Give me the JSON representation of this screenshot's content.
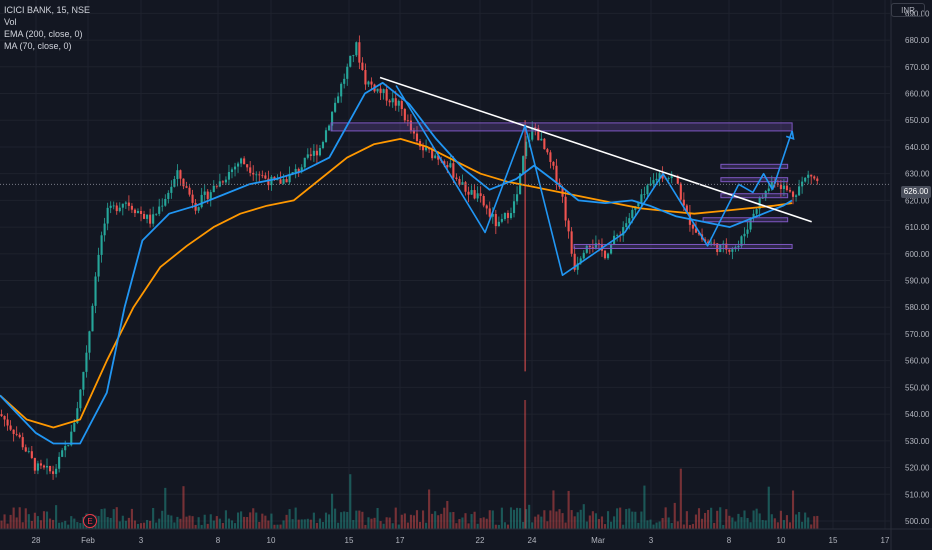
{
  "legend": {
    "symbol": "ICICI BANK, 15, NSE",
    "volume": "Vol",
    "ema": "EMA (200, close, 0)",
    "ma": "MA (70, close, 0)"
  },
  "currency": "INR",
  "last_price": "626.00",
  "event_marker": "E",
  "colors": {
    "background": "#131722",
    "grid": "#1e222d",
    "up": "#26a69a",
    "down": "#ef5350",
    "ema": "#ff9800",
    "ma": "#2196f3",
    "zone": "#7e57c2",
    "trendline": "#ffffff",
    "pattern": "#2196f3"
  },
  "chart_data": {
    "type": "candlestick",
    "symbol": "ICICI BANK",
    "timeframe": "15",
    "exchange": "NSE",
    "y_axis": {
      "range": [
        497,
        695
      ],
      "ticks": [
        500,
        510,
        520,
        530,
        540,
        550,
        560,
        570,
        580,
        590,
        600,
        610,
        620,
        630,
        640,
        650,
        660,
        670,
        680,
        690
      ]
    },
    "x_axis": {
      "ticks": [
        "28",
        "Feb",
        "3",
        "8",
        "10",
        "15",
        "17",
        "22",
        "24",
        "Mar",
        "3",
        "8",
        "10",
        "15",
        "17"
      ]
    },
    "price_path": [
      [
        0,
        540
      ],
      [
        0.02,
        532
      ],
      [
        0.04,
        520
      ],
      [
        0.06,
        518
      ],
      [
        0.08,
        532
      ],
      [
        0.09,
        548
      ],
      [
        0.1,
        570
      ],
      [
        0.11,
        600
      ],
      [
        0.12,
        615
      ],
      [
        0.14,
        620
      ],
      [
        0.17,
        612
      ],
      [
        0.2,
        630
      ],
      [
        0.22,
        618
      ],
      [
        0.25,
        628
      ],
      [
        0.27,
        635
      ],
      [
        0.29,
        630
      ],
      [
        0.31,
        626
      ],
      [
        0.33,
        630
      ],
      [
        0.36,
        640
      ],
      [
        0.38,
        660
      ],
      [
        0.4,
        678
      ],
      [
        0.41,
        665
      ],
      [
        0.43,
        660
      ],
      [
        0.45,
        655
      ],
      [
        0.47,
        640
      ],
      [
        0.5,
        635
      ],
      [
        0.52,
        625
      ],
      [
        0.54,
        620
      ],
      [
        0.56,
        610
      ],
      [
        0.58,
        620
      ],
      [
        0.59,
        640
      ],
      [
        0.6,
        648
      ],
      [
        0.61,
        640
      ],
      [
        0.63,
        625
      ],
      [
        0.645,
        595
      ],
      [
        0.66,
        605
      ],
      [
        0.68,
        600
      ],
      [
        0.7,
        610
      ],
      [
        0.72,
        620
      ],
      [
        0.74,
        630
      ],
      [
        0.76,
        628
      ],
      [
        0.77,
        615
      ],
      [
        0.79,
        605
      ],
      [
        0.81,
        602
      ],
      [
        0.83,
        603
      ],
      [
        0.85,
        618
      ],
      [
        0.87,
        628
      ],
      [
        0.89,
        622
      ],
      [
        0.91,
        630
      ],
      [
        0.92,
        626
      ]
    ],
    "ema_200": [
      [
        0,
        547
      ],
      [
        0.03,
        538
      ],
      [
        0.06,
        535
      ],
      [
        0.09,
        538
      ],
      [
        0.12,
        560
      ],
      [
        0.15,
        580
      ],
      [
        0.18,
        595
      ],
      [
        0.21,
        603
      ],
      [
        0.24,
        610
      ],
      [
        0.27,
        615
      ],
      [
        0.3,
        618
      ],
      [
        0.33,
        620
      ],
      [
        0.36,
        628
      ],
      [
        0.39,
        636
      ],
      [
        0.42,
        641
      ],
      [
        0.45,
        643
      ],
      [
        0.48,
        640
      ],
      [
        0.51,
        635
      ],
      [
        0.54,
        630
      ],
      [
        0.57,
        627
      ],
      [
        0.6,
        625
      ],
      [
        0.63,
        623
      ],
      [
        0.66,
        621
      ],
      [
        0.69,
        619
      ],
      [
        0.72,
        617
      ],
      [
        0.75,
        616
      ],
      [
        0.78,
        615
      ],
      [
        0.81,
        616
      ],
      [
        0.84,
        617
      ],
      [
        0.87,
        618
      ],
      [
        0.89,
        619
      ]
    ],
    "ma_70": [
      [
        0,
        547
      ],
      [
        0.02,
        540
      ],
      [
        0.04,
        533
      ],
      [
        0.06,
        529
      ],
      [
        0.09,
        529
      ],
      [
        0.12,
        548
      ],
      [
        0.14,
        580
      ],
      [
        0.16,
        605
      ],
      [
        0.19,
        615
      ],
      [
        0.22,
        618
      ],
      [
        0.25,
        622
      ],
      [
        0.28,
        626
      ],
      [
        0.31,
        628
      ],
      [
        0.34,
        631
      ],
      [
        0.37,
        636
      ],
      [
        0.39,
        648
      ],
      [
        0.41,
        660
      ],
      [
        0.43,
        664
      ],
      [
        0.46,
        656
      ],
      [
        0.49,
        643
      ],
      [
        0.52,
        632
      ],
      [
        0.55,
        624
      ],
      [
        0.58,
        628
      ],
      [
        0.6,
        633
      ],
      [
        0.62,
        628
      ],
      [
        0.65,
        620
      ],
      [
        0.68,
        619
      ],
      [
        0.71,
        620
      ],
      [
        0.73,
        618
      ],
      [
        0.76,
        614
      ],
      [
        0.79,
        612
      ],
      [
        0.82,
        610
      ],
      [
        0.85,
        614
      ],
      [
        0.88,
        618
      ],
      [
        0.89,
        620
      ]
    ],
    "support_resistance_zones": [
      {
        "x": [
          0.372,
          0.89
        ],
        "y": [
          646,
          649
        ]
      },
      {
        "x": [
          0.81,
          0.885
        ],
        "y": [
          632,
          633.5
        ]
      },
      {
        "x": [
          0.81,
          0.885
        ],
        "y": [
          627,
          628.5
        ]
      },
      {
        "x": [
          0.81,
          0.885
        ],
        "y": [
          621,
          622.5
        ]
      },
      {
        "x": [
          0.79,
          0.885
        ],
        "y": [
          612,
          613.5
        ]
      },
      {
        "x": [
          0.645,
          0.89
        ],
        "y": [
          602,
          603.5
        ]
      }
    ],
    "trendline": [
      [
        0.427,
        666
      ],
      [
        0.912,
        612
      ]
    ],
    "pattern_path": [
      [
        0.445,
        663
      ],
      [
        0.545,
        608
      ],
      [
        0.59,
        648
      ],
      [
        0.632,
        592
      ],
      [
        0.702,
        608
      ],
      [
        0.745,
        630
      ],
      [
        0.795,
        603
      ],
      [
        0.83,
        626
      ],
      [
        0.846,
        623
      ],
      [
        0.858,
        630
      ],
      [
        0.868,
        624
      ]
    ],
    "projection_arrow": [
      [
        0.868,
        624
      ],
      [
        0.89,
        646
      ]
    ]
  }
}
